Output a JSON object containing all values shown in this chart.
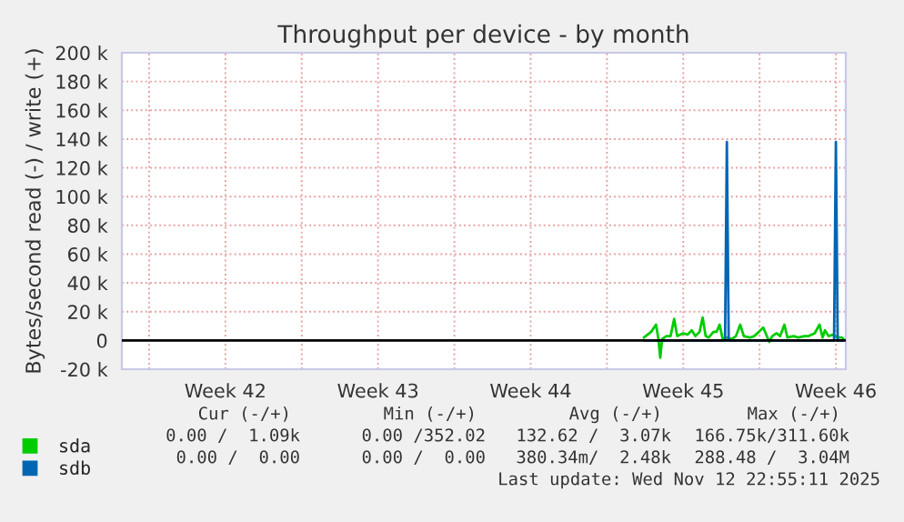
{
  "chart_data": {
    "type": "line",
    "title": "Throughput per device - by month",
    "ylabel": "Bytes/second read (-) / write (+)",
    "xlim": [
      "2025-10-10T18:00",
      "2025-11-12T22:55"
    ],
    "xticks": [
      {
        "value": "2025-10-12",
        "label": null
      },
      {
        "value": "2025-10-15T12:00",
        "label": "Week 42"
      },
      {
        "value": "2025-10-19",
        "label": null
      },
      {
        "value": "2025-10-22T12:00",
        "label": "Week 43"
      },
      {
        "value": "2025-10-26",
        "label": null
      },
      {
        "value": "2025-10-29T12:00",
        "label": "Week 44"
      },
      {
        "value": "2025-11-02",
        "label": null
      },
      {
        "value": "2025-11-05T12:00",
        "label": "Week 45"
      },
      {
        "value": "2025-11-09",
        "label": null
      },
      {
        "value": "2025-11-12T12:00",
        "label": "Week 46"
      }
    ],
    "ylim": [
      -20000,
      200000
    ],
    "yticks": [
      {
        "value": -20000,
        "label": "-20 k"
      },
      {
        "value": 0,
        "label": "0"
      },
      {
        "value": 20000,
        "label": "20 k"
      },
      {
        "value": 40000,
        "label": "40 k"
      },
      {
        "value": 60000,
        "label": "60 k"
      },
      {
        "value": 80000,
        "label": "80 k"
      },
      {
        "value": 100000,
        "label": "100 k"
      },
      {
        "value": 120000,
        "label": "120 k"
      },
      {
        "value": 140000,
        "label": "140 k"
      },
      {
        "value": 160000,
        "label": "160 k"
      },
      {
        "value": 180000,
        "label": "180 k"
      },
      {
        "value": 200000,
        "label": "200 k"
      }
    ],
    "grid": true,
    "legend": "bottom",
    "ref_lines": [
      {
        "axis": "y",
        "value": 0,
        "label": null,
        "color": "#000000"
      }
    ],
    "series": [
      {
        "name": "sda",
        "color": "#00cc00",
        "x": [
          "2025-11-03T16:40",
          "2025-11-04T00:40",
          "2025-11-04T06:00",
          "2025-11-04T08:40",
          "2025-11-04T10:40",
          "2025-11-04T12:40",
          "2025-11-04T17:20",
          "2025-11-04T22:00",
          "2025-11-05T02:00",
          "2025-11-05T05:20",
          "2025-11-05T12:00",
          "2025-11-05T16:40",
          "2025-11-05T21:20",
          "2025-11-06T01:20",
          "2025-11-06T06:00",
          "2025-11-06T09:20",
          "2025-11-06T12:40",
          "2025-11-06T16:00",
          "2025-11-06T21:20",
          "2025-11-07T00:40",
          "2025-11-07T04:00",
          "2025-11-07T07:20",
          "2025-11-07T12:00",
          "2025-11-07T17:20",
          "2025-11-07T22:00",
          "2025-11-08T02:40",
          "2025-11-08T06:40",
          "2025-11-08T13:20",
          "2025-11-08T18:00",
          "2025-11-08T23:20",
          "2025-11-09T04:00",
          "2025-11-09T07:20",
          "2025-11-09T10:40",
          "2025-11-09T14:00",
          "2025-11-09T18:40",
          "2025-11-09T22:40",
          "2025-11-10T03:20",
          "2025-11-10T06:40",
          "2025-11-10T13:20",
          "2025-11-10T18:40",
          "2025-11-11T01:20",
          "2025-11-11T06:00",
          "2025-11-11T12:40",
          "2025-11-11T18:00",
          "2025-11-11T21:20",
          "2025-11-12T00:00",
          "2025-11-12T04:00",
          "2025-11-12T08:40",
          "2025-11-12T13:20",
          "2025-11-12T18:40",
          "2025-11-12T20:20"
        ],
        "values": [
          2000,
          6000,
          11000,
          1000,
          -12000,
          1000,
          3000,
          3000,
          15000,
          3000,
          5000,
          4000,
          7000,
          3000,
          6000,
          16000,
          3000,
          2000,
          6000,
          6000,
          11000,
          1000,
          2000,
          1000,
          3000,
          11000,
          3000,
          2000,
          3000,
          6000,
          9000,
          4000,
          -1000,
          3000,
          5000,
          3000,
          11000,
          2000,
          3000,
          2000,
          3000,
          3000,
          5000,
          11000,
          2000,
          7000,
          3000,
          4000,
          2000,
          2000,
          1000
        ]
      },
      {
        "name": "sdb",
        "color": "#0066b3",
        "x": [
          "2025-11-03T16:40",
          "2025-11-07T10:00",
          "2025-11-07T12:00",
          "2025-11-07T14:00",
          "2025-11-12T10:00",
          "2025-11-12T12:00",
          "2025-11-12T14:00",
          "2025-11-12T20:20"
        ],
        "values": [
          0,
          0,
          138000,
          0,
          0,
          138000,
          0,
          0
        ]
      }
    ],
    "annotations": [
      "Cur (-/+)",
      "Min (-/+)",
      "Avg (-/+)",
      "Max (-/+)",
      "0.00 /  1.09k",
      "0.00 /352.02",
      "132.62 /  3.07k",
      "166.75k/311.60k",
      "0.00 /  0.00",
      "0.00 /  0.00",
      "380.34m/  2.48k",
      "288.48 /  3.04M",
      "Last update: Wed Nov 12 22:55:11 2025"
    ]
  }
}
